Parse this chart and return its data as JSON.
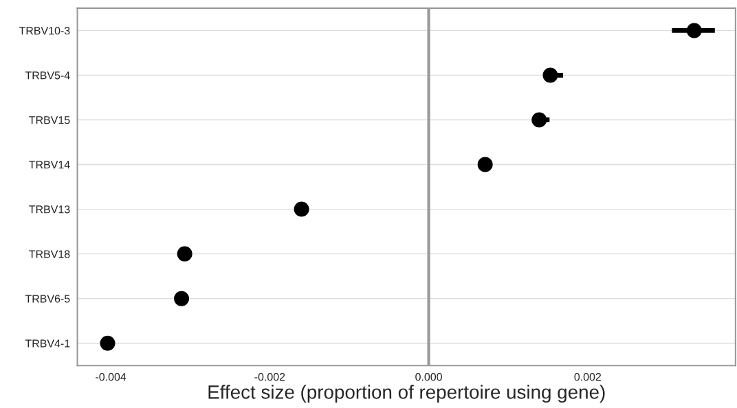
{
  "chart_data": {
    "type": "scatter",
    "orientation": "horizontal",
    "categories": [
      "TRBV10-3",
      "TRBV5-4",
      "TRBV15",
      "TRBV14",
      "TRBV13",
      "TRBV18",
      "TRBV6-5",
      "TRBV4-1"
    ],
    "values": [
      0.00334,
      0.00153,
      0.00139,
      0.00071,
      -0.0016,
      -0.00307,
      -0.00311,
      -0.00404
    ],
    "errors": [
      [
        0.00306,
        0.0036
      ],
      [
        0.00145,
        0.00169
      ],
      [
        0.0013,
        0.00152
      ],
      null,
      null,
      null,
      null,
      null
    ],
    "color": "#000000",
    "marker": "circle",
    "xlabel": "Effect size (proportion of repertoire using gene)",
    "xlim": [
      -0.00442,
      0.00386
    ],
    "xticks": [
      {
        "value": -0.004,
        "label": "-0.004"
      },
      {
        "value": -0.002,
        "label": "-0.002"
      },
      {
        "value": 0,
        "label": "0.000"
      },
      {
        "value": 0.002,
        "label": "0.002"
      }
    ],
    "ref_lines": [
      {
        "axis": "x",
        "value": 0,
        "color": "#999999"
      }
    ],
    "grid": "y"
  }
}
